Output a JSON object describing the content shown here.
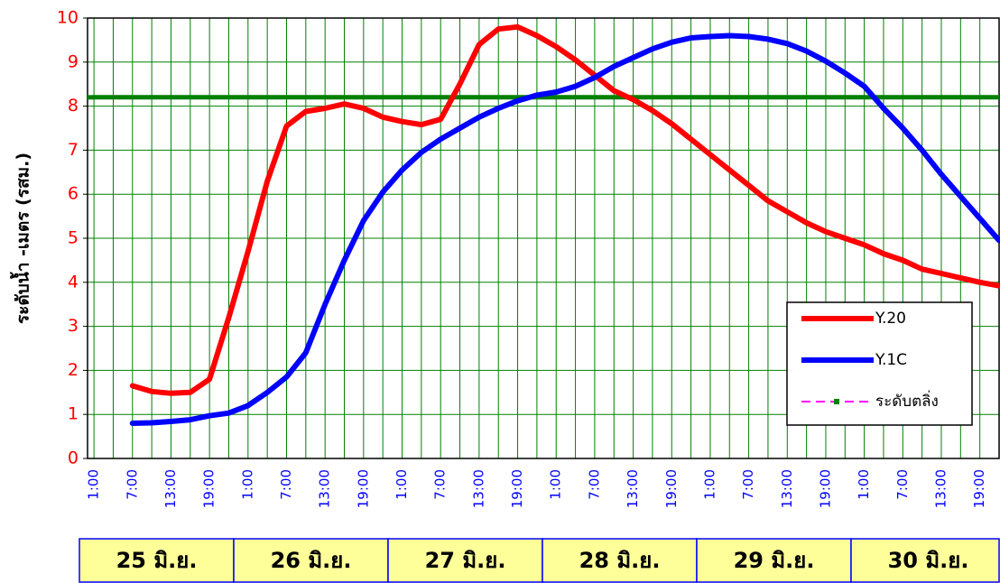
{
  "chart_data": {
    "type": "line",
    "y_label": "ระดับน้ำ -เมตร (รสม.)",
    "categories": [
      "1:00",
      null,
      "7:00",
      null,
      "13:00",
      null,
      "19:00",
      null,
      "1:00",
      null,
      "7:00",
      null,
      "13:00",
      null,
      "19:00",
      null,
      "1:00",
      null,
      "7:00",
      null,
      "13:00",
      null,
      "19:00",
      null,
      "1:00",
      null,
      "7:00",
      null,
      "13:00",
      null,
      "19:00",
      null,
      "1:00",
      null,
      "7:00",
      null,
      "13:00",
      null,
      "19:00",
      null,
      "1:00",
      null,
      "7:00",
      null,
      "13:00",
      null,
      "19:00",
      null
    ],
    "day_labels": [
      "25 มิ.ย.",
      "26 มิ.ย.",
      "27 มิ.ย.",
      "28 มิ.ย.",
      "29 มิ.ย.",
      "30 มิ.ย."
    ],
    "series": [
      {
        "name": "Y.20",
        "color": "#ff0000",
        "values": [
          null,
          null,
          1.65,
          1.52,
          1.48,
          1.5,
          1.8,
          3.2,
          4.7,
          6.3,
          7.55,
          7.88,
          7.95,
          8.05,
          7.95,
          7.75,
          7.65,
          7.58,
          7.7,
          8.5,
          9.4,
          9.75,
          9.8,
          9.6,
          9.35,
          9.05,
          8.7,
          8.35,
          8.15,
          7.9,
          7.6,
          7.25,
          6.9,
          6.55,
          6.2,
          5.85,
          5.6,
          5.35,
          5.15,
          5.0,
          4.85,
          4.65,
          4.5,
          4.3,
          4.2,
          4.1,
          4.0,
          3.92
        ]
      },
      {
        "name": "Y.1C",
        "color": "#0000ff",
        "values": [
          null,
          null,
          0.8,
          0.81,
          0.84,
          0.88,
          0.97,
          1.03,
          1.2,
          1.5,
          1.85,
          2.4,
          3.5,
          4.5,
          5.4,
          6.05,
          6.55,
          6.95,
          7.25,
          7.5,
          7.75,
          7.95,
          8.12,
          8.25,
          8.32,
          8.45,
          8.65,
          8.9,
          9.1,
          9.3,
          9.45,
          9.55,
          9.58,
          9.6,
          9.58,
          9.52,
          9.42,
          9.25,
          9.02,
          8.75,
          8.45,
          7.95,
          7.5,
          7.0,
          6.45,
          5.95,
          5.45,
          4.95
        ]
      },
      {
        "name": "ระดับตลิ่ง",
        "color": "#008000",
        "legend_color": "#ff00ff",
        "values": [
          8.2,
          8.2,
          8.2,
          8.2,
          8.2,
          8.2,
          8.2,
          8.2,
          8.2,
          8.2,
          8.2,
          8.2,
          8.2,
          8.2,
          8.2,
          8.2,
          8.2,
          8.2,
          8.2,
          8.2,
          8.2,
          8.2,
          8.2,
          8.2,
          8.2,
          8.2,
          8.2,
          8.2,
          8.2,
          8.2,
          8.2,
          8.2,
          8.2,
          8.2,
          8.2,
          8.2,
          8.2,
          8.2,
          8.2,
          8.2,
          8.2,
          8.2,
          8.2,
          8.2,
          8.2,
          8.2,
          8.2,
          8.2
        ]
      }
    ],
    "ylim": [
      0,
      10
    ],
    "yticks": [
      0,
      1,
      2,
      3,
      4,
      5,
      6,
      7,
      8,
      9,
      10
    ],
    "grid": true
  }
}
